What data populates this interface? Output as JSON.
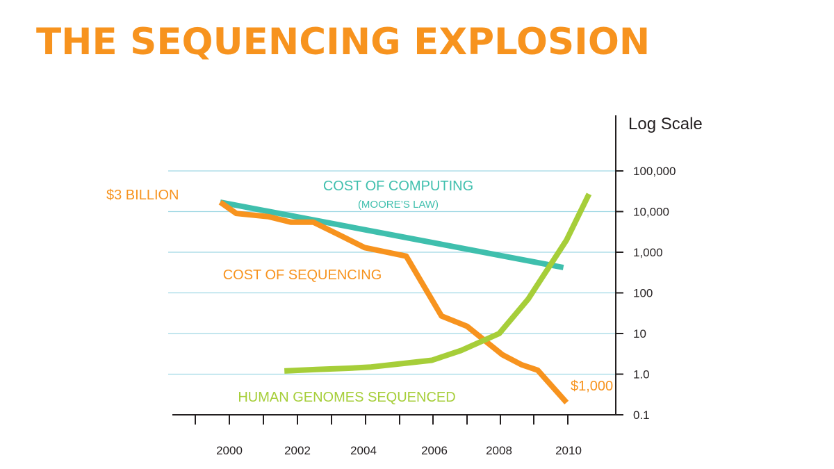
{
  "title": "THE SEQUENCING EXPLOSION",
  "colors": {
    "title": "#f7931e",
    "sequencing": "#f7931e",
    "computing": "#3fbfad",
    "genomes": "#a6ce39",
    "grid": "#9fd8e4",
    "axis": "#231f20"
  },
  "chart_data": {
    "type": "line",
    "scale": "log",
    "ylabel": "Log Scale",
    "ylim": [
      0.1,
      100000
    ],
    "xlim": [
      1998.6,
      2011.3
    ],
    "y_ticks": [
      0.1,
      1,
      10,
      100,
      1000,
      10000,
      100000
    ],
    "y_tick_labels": [
      "0.1",
      "1.0",
      "10",
      "100",
      "1,000",
      "10,000",
      "100,000"
    ],
    "x_ticks_major": [
      2000,
      2002,
      2004,
      2006,
      2008,
      2010
    ],
    "x_tick_labels": [
      "2000",
      "2002",
      "2004",
      "2006",
      "2008",
      "2010"
    ],
    "x_ticks_minor": [
      1999,
      2000,
      2001,
      2002,
      2003,
      2004,
      2005,
      2006,
      2007,
      2008,
      2009,
      2010
    ],
    "grid": "horizontal",
    "series": [
      {
        "name": "COST OF SEQUENCING",
        "color_key": "sequencing",
        "x": [
          1999.4,
          1999.9,
          2000.9,
          2001.6,
          2002.3,
          2003.1,
          2003.9,
          2004.6,
          2005.2,
          2006.3,
          2007.1,
          2008.2,
          2008.8,
          2009.3,
          2010.2
        ],
        "y": [
          17000,
          9000,
          7500,
          5500,
          5500,
          2700,
          1300,
          1000,
          800,
          27,
          15,
          3.0,
          1.7,
          1.25,
          0.2
        ]
      },
      {
        "name": "COST OF COMPUTING",
        "color_key": "computing",
        "x": [
          1999.4,
          2010.1
        ],
        "y": [
          17000,
          420
        ]
      },
      {
        "name": "HUMAN GENOMES SEQUENCED",
        "color_key": "genomes",
        "x": [
          2001.4,
          2002.4,
          2003.4,
          2004.1,
          2005.0,
          2006.0,
          2006.9,
          2008.1,
          2009.0,
          2010.2,
          2010.9
        ],
        "y": [
          1.2,
          1.3,
          1.4,
          1.5,
          1.8,
          2.2,
          3.8,
          10,
          70,
          2000,
          27000
        ]
      }
    ],
    "annotations": [
      {
        "text": "$3 BILLION",
        "color_key": "sequencing"
      },
      {
        "text": "COST OF COMPUTING",
        "color_key": "computing"
      },
      {
        "text": "(MOORE’S LAW)",
        "color_key": "computing"
      },
      {
        "text": "COST OF SEQUENCING",
        "color_key": "sequencing"
      },
      {
        "text": "HUMAN GENOMES SEQUENCED",
        "color_key": "genomes"
      },
      {
        "text": "$1,000",
        "color_key": "sequencing"
      }
    ]
  }
}
